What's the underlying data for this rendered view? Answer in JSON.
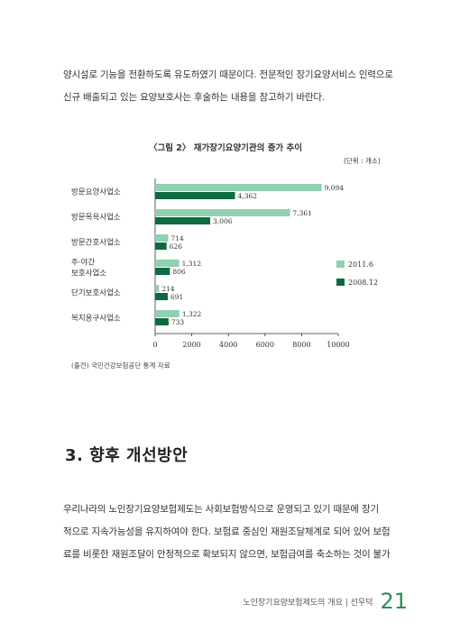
{
  "intro_paragraph": [
    "양시설로 기능을 전환하도록 유도하였기 때문이다. 전문적인 장기요양서비스 인력으로",
    "신규 배출되고 있는 요양보호사는 후술하는 내용을 참고하기 바란다."
  ],
  "figure": {
    "caption": "〈그림 2〉 재가장기요양기관의 증가 추이",
    "unit": "(단위 : 개소)",
    "source": "(출전) 국민건강보험공단 통계 자료"
  },
  "chart_data": {
    "type": "bar",
    "orientation": "horizontal",
    "categories": [
      [
        "방문요양사업소"
      ],
      [
        "방문목욕사업소"
      ],
      [
        "방문간호사업소"
      ],
      [
        "주·야간",
        "보호사업소"
      ],
      [
        "단기보호사업소"
      ],
      [
        "복지용구사업소"
      ]
    ],
    "series": [
      {
        "name": "2011.6",
        "color": "#8fd1b0",
        "values": [
          9094,
          7361,
          714,
          1312,
          214,
          1322
        ]
      },
      {
        "name": "2008.12",
        "color": "#0e6b3f",
        "values": [
          4362,
          3006,
          626,
          806,
          691,
          733
        ]
      }
    ],
    "value_labels": [
      [
        "9,094",
        "7,361",
        "714",
        "1,312",
        "214",
        "1,322"
      ],
      [
        "4,362",
        "3,006",
        "626",
        "806",
        "691",
        "733"
      ]
    ],
    "xlim": [
      0,
      10000
    ],
    "xticks": [
      "0",
      "2000",
      "4000",
      "6000",
      "8000",
      "10000"
    ],
    "legend_position": "right"
  },
  "section_heading": "3. 향후 개선방안",
  "body_paragraph": [
    "우리나라의 노인장기요양보험제도는 사회보험방식으로 운영되고 있기 때문에 장기",
    "적으로 지속가능성을 유지하여야 한다. 보험료 중심인 재원조달체계로 되어 있어 보험",
    "료를 비롯한 재원조달이 안정적으로 확보되지 않으면, 보험급여를 축소하는 것이 불가"
  ],
  "footer": {
    "running_title": "노인장기요양보험제도의 개요 | 선우덕",
    "page_number": "21"
  }
}
